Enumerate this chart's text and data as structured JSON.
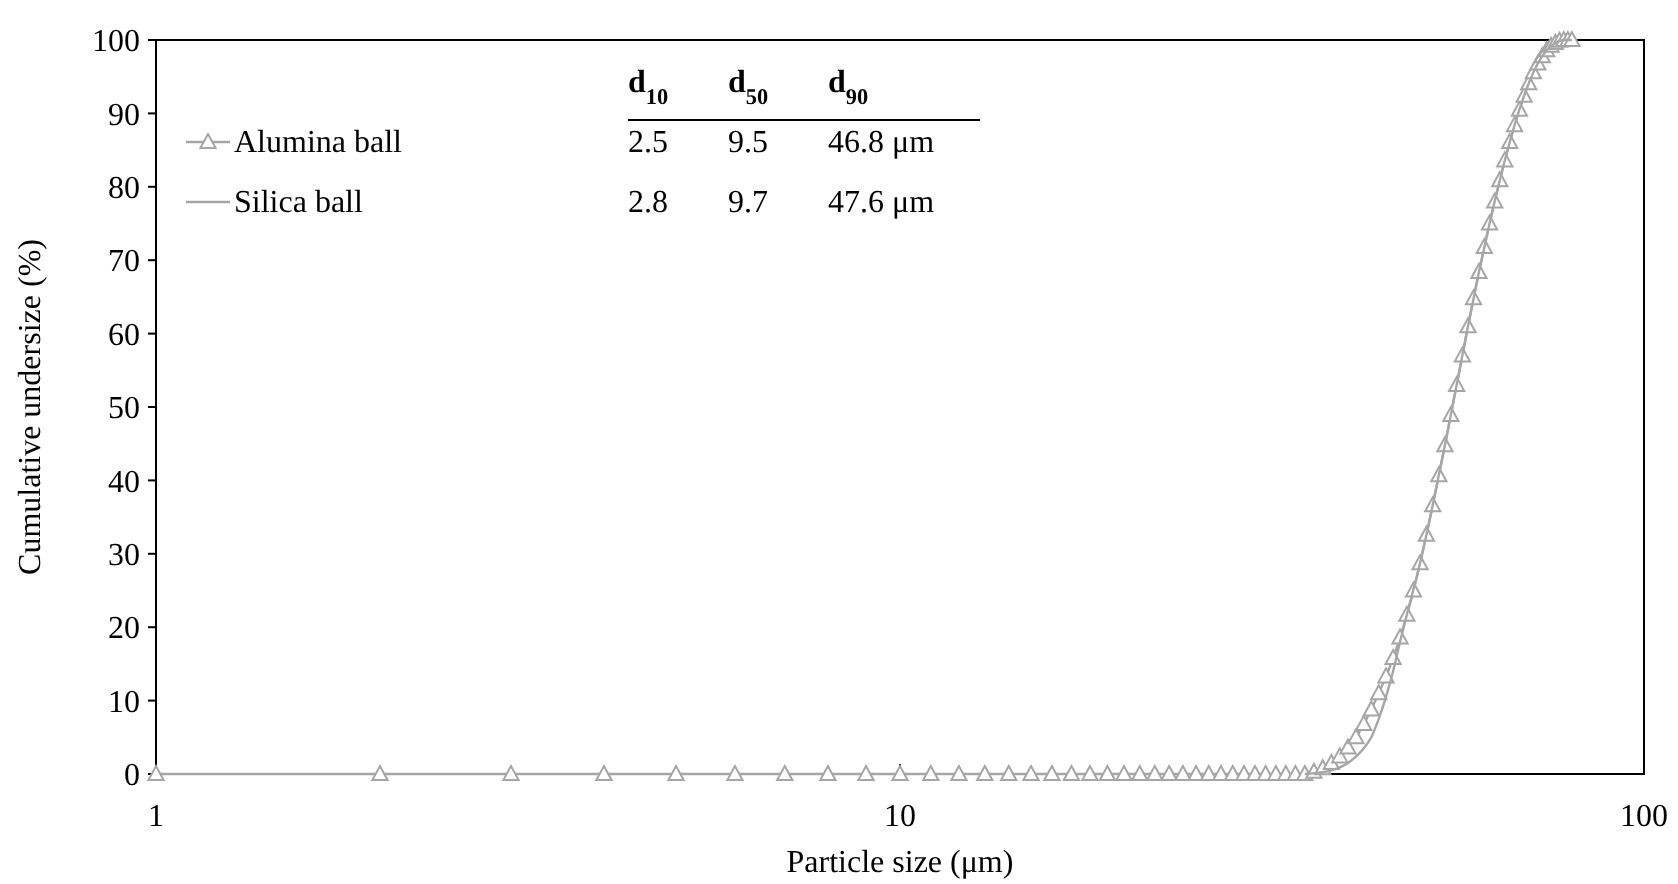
{
  "chart_data": {
    "type": "line",
    "xlabel": "Particle size (μm)",
    "ylabel": "Cumulative undersize (%)",
    "log": "x",
    "xlim": [
      1,
      100
    ],
    "xticks": [
      1,
      10,
      100
    ],
    "ylim": [
      0,
      100
    ],
    "yticks": [
      0,
      10,
      20,
      30,
      40,
      50,
      60,
      70,
      80,
      90,
      100
    ],
    "grid": false,
    "legend": "top left",
    "series": [
      {
        "name": "Alumina ball",
        "color": "#a6a6a6",
        "marker": "triangle",
        "x": [
          1,
          2,
          3,
          4,
          5,
          6,
          7,
          8,
          9,
          10,
          11,
          12,
          13,
          14,
          15,
          16,
          17,
          18,
          19,
          20,
          21,
          22,
          23,
          24,
          25,
          26,
          27,
          28,
          29,
          30,
          31,
          32,
          33,
          34,
          35,
          36,
          37,
          38,
          39,
          40,
          41,
          42,
          43,
          44,
          45,
          46,
          47,
          48,
          49,
          50,
          51,
          52,
          53,
          54,
          55,
          56,
          57,
          58,
          59,
          60,
          61,
          62,
          63,
          64,
          65,
          66,
          67,
          68,
          69,
          70,
          71,
          72,
          73,
          74,
          75,
          76,
          77,
          78,
          79,
          80
        ],
        "values": [
          0,
          0,
          0,
          0,
          0,
          0,
          0,
          0,
          0,
          0,
          0,
          0,
          0,
          0,
          0,
          0,
          0,
          0,
          0,
          0,
          0,
          0,
          0,
          0,
          0,
          0,
          0,
          0,
          0,
          0,
          0,
          0,
          0,
          0,
          0,
          0.3,
          0.8,
          1.5,
          2.4,
          3.6,
          5,
          6.8,
          8.8,
          11,
          13.3,
          15.8,
          18.6,
          21.7,
          25,
          28.7,
          32.6,
          36.6,
          40.7,
          44.8,
          48.9,
          53,
          57,
          61,
          64.8,
          68.4,
          71.8,
          75,
          78,
          80.9,
          83.6,
          86.1,
          88.4,
          90.5,
          92.4,
          94.1,
          95.6,
          96.8,
          97.8,
          98.6,
          99.2,
          99.6,
          99.9,
          100,
          100,
          100
        ]
      },
      {
        "name": "Silica ball",
        "color": "#a6a6a6",
        "marker": "none",
        "x": [
          35,
          38,
          40,
          42,
          43,
          44,
          45,
          46,
          47,
          48,
          50,
          52,
          54,
          56,
          58,
          60,
          62,
          64,
          66,
          68,
          70,
          72,
          74,
          76,
          78,
          80
        ],
        "values": [
          0,
          0.5,
          1.5,
          3.5,
          5,
          7.5,
          10.5,
          14,
          18,
          21.7,
          28.7,
          36.6,
          44.8,
          53,
          61,
          68.4,
          75,
          80.9,
          86.1,
          90.5,
          94.1,
          96.8,
          98.6,
          99.6,
          100,
          100
        ]
      }
    ],
    "annotations": [
      "d$_{10}$",
      "d$_{50}$",
      "d$_{90}$",
      "2.5",
      "9.5",
      "46.8 μm",
      "2.8",
      "9.7",
      "47.6 μm"
    ]
  }
}
